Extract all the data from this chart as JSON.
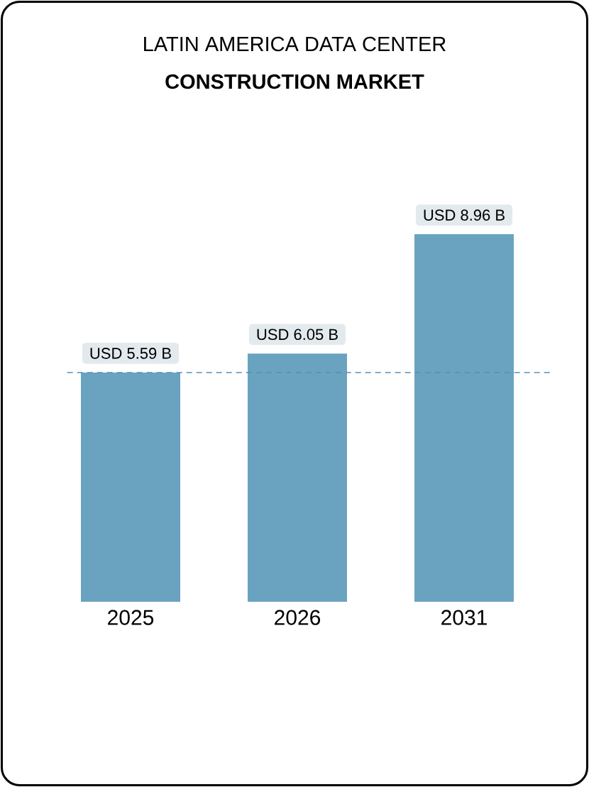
{
  "chart_data": {
    "type": "bar",
    "title": "LATIN AMERICA DATA CENTER",
    "subtitle": "CONSTRUCTION MARKET",
    "categories": [
      "2025",
      "2026",
      "2031"
    ],
    "values": [
      5.59,
      6.05,
      8.96
    ],
    "color": "#6aa3c0",
    "value_labels": [
      "USD 5.59 B",
      "USD 6.05 B",
      "USD 8.96 B"
    ],
    "ref_lines": [
      {
        "axis": "y",
        "value": 5.59,
        "color": "#5b8db8",
        "line_style": "dashed"
      }
    ]
  }
}
